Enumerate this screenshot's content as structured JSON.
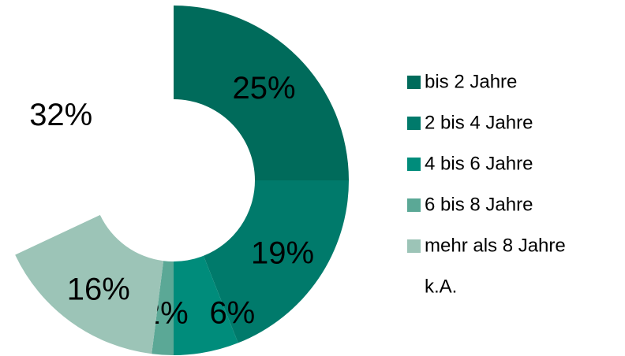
{
  "chart_data": {
    "type": "donut",
    "categories": [
      "bis 2 Jahre",
      "2 bis 4 Jahre",
      "4 bis 6 Jahre",
      "6 bis 8 Jahre",
      "mehr als 8 Jahre",
      "k.A."
    ],
    "values": [
      25,
      19,
      6,
      2,
      16,
      32
    ],
    "value_labels": [
      "25%",
      "19%",
      "6%",
      "2%",
      "16%",
      "32%"
    ],
    "colors": [
      "#006b5b",
      "#007a6b",
      "#008c7b",
      "#5ba896",
      "#9cc4b7",
      "#ffffff"
    ],
    "legend": "right"
  }
}
